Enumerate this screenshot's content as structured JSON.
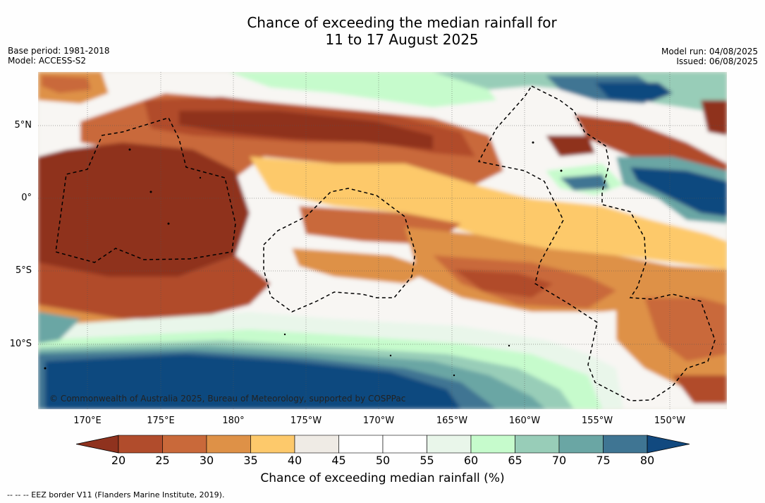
{
  "title_line1": "Chance of exceeding the median rainfall for",
  "title_line2": "11 to 17 August 2025",
  "meta_left": {
    "base_period": "Base period: 1981-2018",
    "model": "Model: ACCESS-S2"
  },
  "meta_right": {
    "model_run": "Model run: 04/08/2025",
    "issued": "Issued: 06/08/2025"
  },
  "latitude_labels": [
    "5°N",
    "0°",
    "5°S",
    "10°S"
  ],
  "longitude_labels": [
    "170°E",
    "175°E",
    "180°",
    "175°W",
    "170°W",
    "165°W",
    "160°W",
    "155°W",
    "150°W"
  ],
  "copyright": "© Commonwealth of Australia 2025, Bureau of Meteorology, supported by COSPPac",
  "legend": {
    "label": "Chance of exceeding median rainfall (%)",
    "ticks": [
      "20",
      "25",
      "30",
      "35",
      "40",
      "45",
      "50",
      "55",
      "60",
      "65",
      "70",
      "75",
      "80"
    ],
    "colors": [
      "#8f321e",
      "#b14c2c",
      "#c9693a",
      "#de9147",
      "#fdc96b",
      "#efebe5",
      "#ffffff",
      "#ffffff",
      "#e9f6ea",
      "#c6fbcc",
      "#98cdb8",
      "#6aa6a4",
      "#3f7593",
      "#11497f"
    ]
  },
  "footer": "--  --  -- EEZ border V11 (Flanders Marine Institute, 2019)."
}
